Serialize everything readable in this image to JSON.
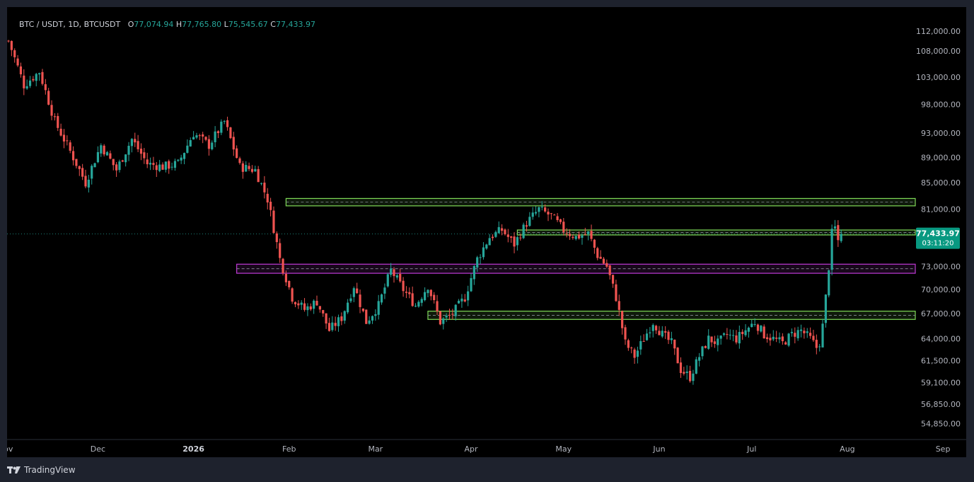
{
  "header": {
    "symbol": "BTC / USDT, 1D, BTCUSDT",
    "open_key": "O",
    "open_value": "77,074.94",
    "high_key": "H",
    "high_value": "77,765.80",
    "low_key": "L",
    "low_value": "75,545.67",
    "close_key": "C",
    "close_value": "77,433.97"
  },
  "price_badge": {
    "price": "77,433.97",
    "countdown": "03:11:20"
  },
  "footer": {
    "brand": "TradingView"
  },
  "colors": {
    "up": "#26a69a",
    "down": "#ef5350",
    "zone_green": "#7ed957",
    "zone_purple": "#c03ad6",
    "badge": "#089981"
  },
  "chart_data": {
    "type": "candlestick",
    "title": "BTC / USDT, 1D, BTCUSDT",
    "x_tick_labels": [
      "Nov",
      "Dec",
      "2026",
      "Feb",
      "Mar",
      "Apr",
      "May",
      "Jun",
      "Jul",
      "Aug",
      "Sep"
    ],
    "y_tick_labels": [
      "112,000.00",
      "108,000.00",
      "103,000.00",
      "98,000.00",
      "93,000.00",
      "89,000.00",
      "85,000.00",
      "81,000.00",
      "73,000.00",
      "70,000.00",
      "67,000.00",
      "64,000.00",
      "61,500.00",
      "59,100.00",
      "56,850.00",
      "54,850.00"
    ],
    "y_scale": "log",
    "ylim": [
      53500,
      114000
    ],
    "last_close": 77433.97,
    "price_path": [
      {
        "d": 0,
        "p": 110000
      },
      {
        "d": 5,
        "p": 101500
      },
      {
        "d": 10,
        "p": 104000
      },
      {
        "d": 15,
        "p": 95000
      },
      {
        "d": 20,
        "p": 90000
      },
      {
        "d": 25,
        "p": 85000
      },
      {
        "d": 30,
        "p": 91000
      },
      {
        "d": 35,
        "p": 87000
      },
      {
        "d": 40,
        "p": 92000
      },
      {
        "d": 45,
        "p": 88000
      },
      {
        "d": 50,
        "p": 87500
      },
      {
        "d": 55,
        "p": 88000
      },
      {
        "d": 60,
        "p": 93000
      },
      {
        "d": 65,
        "p": 91000
      },
      {
        "d": 70,
        "p": 95000
      },
      {
        "d": 75,
        "p": 87500
      },
      {
        "d": 80,
        "p": 87000
      },
      {
        "d": 84,
        "p": 82500
      },
      {
        "d": 88,
        "p": 74000
      },
      {
        "d": 92,
        "p": 69000
      },
      {
        "d": 96,
        "p": 67500
      },
      {
        "d": 100,
        "p": 68500
      },
      {
        "d": 104,
        "p": 65000
      },
      {
        "d": 108,
        "p": 66500
      },
      {
        "d": 112,
        "p": 70500
      },
      {
        "d": 116,
        "p": 66000
      },
      {
        "d": 120,
        "p": 68000
      },
      {
        "d": 124,
        "p": 72500
      },
      {
        "d": 128,
        "p": 70000
      },
      {
        "d": 132,
        "p": 68000
      },
      {
        "d": 136,
        "p": 70500
      },
      {
        "d": 140,
        "p": 66000
      },
      {
        "d": 144,
        "p": 67000
      },
      {
        "d": 148,
        "p": 69000
      },
      {
        "d": 152,
        "p": 74000
      },
      {
        "d": 156,
        "p": 77000
      },
      {
        "d": 160,
        "p": 78000
      },
      {
        "d": 164,
        "p": 76000
      },
      {
        "d": 168,
        "p": 79000
      },
      {
        "d": 172,
        "p": 81000
      },
      {
        "d": 176,
        "p": 80000
      },
      {
        "d": 180,
        "p": 78000
      },
      {
        "d": 184,
        "p": 77000
      },
      {
        "d": 188,
        "p": 77500
      },
      {
        "d": 191,
        "p": 74500
      },
      {
        "d": 194,
        "p": 73000
      },
      {
        "d": 197,
        "p": 69000
      },
      {
        "d": 200,
        "p": 63500
      },
      {
        "d": 203,
        "p": 62000
      },
      {
        "d": 206,
        "p": 64000
      },
      {
        "d": 209,
        "p": 66000
      },
      {
        "d": 212,
        "p": 64500
      },
      {
        "d": 215,
        "p": 63500
      },
      {
        "d": 218,
        "p": 60500
      },
      {
        "d": 221,
        "p": 59700
      },
      {
        "d": 224,
        "p": 62000
      },
      {
        "d": 227,
        "p": 64000
      },
      {
        "d": 230,
        "p": 63500
      },
      {
        "d": 233,
        "p": 64500
      },
      {
        "d": 236,
        "p": 64000
      },
      {
        "d": 239,
        "p": 65000
      },
      {
        "d": 242,
        "p": 66000
      },
      {
        "d": 245,
        "p": 64500
      },
      {
        "d": 248,
        "p": 64000
      },
      {
        "d": 251,
        "p": 63500
      },
      {
        "d": 254,
        "p": 64500
      },
      {
        "d": 257,
        "p": 65000
      },
      {
        "d": 260,
        "p": 64000
      },
      {
        "d": 262,
        "p": 63000
      },
      {
        "d": 263,
        "p": 63600
      },
      {
        "d": 264,
        "p": 65500
      },
      {
        "d": 265,
        "p": 69000
      },
      {
        "d": 266,
        "p": 73000
      },
      {
        "d": 267,
        "p": 77500
      },
      {
        "d": 268,
        "p": 78300
      },
      {
        "d": 269,
        "p": 76500
      },
      {
        "d": 270,
        "p": 77434
      }
    ],
    "zones": [
      {
        "kind": "resistance",
        "color": "green",
        "start_day": 90,
        "from": 81500,
        "to": 82600
      },
      {
        "kind": "resistance",
        "color": "green",
        "start_day": 165,
        "from": 77300,
        "to": 78000
      },
      {
        "kind": "support",
        "color": "purple",
        "start_day": 74,
        "from": 72100,
        "to": 73300
      },
      {
        "kind": "support",
        "color": "green",
        "start_day": 136,
        "from": 66300,
        "to": 67300
      }
    ]
  }
}
